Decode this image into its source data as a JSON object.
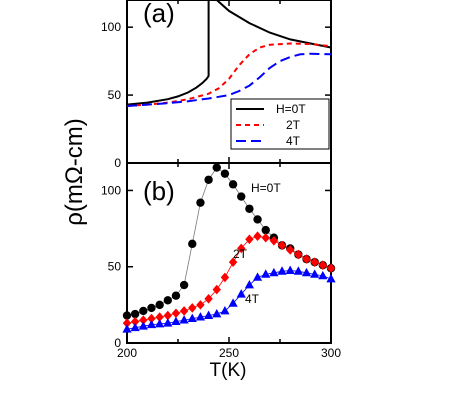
{
  "chart_data": [
    {
      "type": "line",
      "panel_label": "(a)",
      "xlim": [
        200,
        300
      ],
      "ylim": [
        0,
        120
      ],
      "yticks": [
        "0",
        "50",
        "100"
      ],
      "legend_placement": "lower-right",
      "series": [
        {
          "name": "H=0T",
          "color": "#000000",
          "dash": "solid",
          "points": [
            [
              200,
              43
            ],
            [
              210,
              44.5
            ],
            [
              220,
              47
            ],
            [
              225,
              49
            ],
            [
              230,
              52
            ],
            [
              234,
              55.5
            ],
            [
              237,
              59
            ],
            [
              239,
              62
            ],
            [
              240,
              64
            ],
            [
              240,
              120
            ]
          ],
          "points2": [
            [
              244,
              120
            ],
            [
              250,
              112
            ],
            [
              260,
              103
            ],
            [
              270,
              96
            ],
            [
              280,
              91
            ],
            [
              290,
              88
            ],
            [
              300,
              85
            ]
          ]
        },
        {
          "name": "2T",
          "color": "#ff0000",
          "dash": "5,4",
          "points": [
            [
              200,
              42
            ],
            [
              210,
              43
            ],
            [
              220,
              44.5
            ],
            [
              230,
              47
            ],
            [
              240,
              51
            ],
            [
              245,
              55
            ],
            [
              250,
              62
            ],
            [
              255,
              72
            ],
            [
              260,
              80
            ],
            [
              265,
              85
            ],
            [
              270,
              87
            ],
            [
              280,
              88
            ],
            [
              290,
              87.5
            ],
            [
              300,
              86
            ]
          ]
        },
        {
          "name": "4T",
          "color": "#0000ff",
          "dash": "10,5",
          "points": [
            [
              200,
              42
            ],
            [
              210,
              43
            ],
            [
              220,
              44
            ],
            [
              230,
              45.5
            ],
            [
              240,
              47.5
            ],
            [
              250,
              50
            ],
            [
              255,
              53
            ],
            [
              260,
              57
            ],
            [
              265,
              63
            ],
            [
              270,
              70
            ],
            [
              275,
              75
            ],
            [
              280,
              78
            ],
            [
              285,
              80
            ],
            [
              290,
              80.5
            ],
            [
              300,
              80
            ]
          ]
        }
      ]
    },
    {
      "type": "scatter",
      "panel_label": "(b)",
      "xlim": [
        200,
        300
      ],
      "ylim": [
        0,
        118
      ],
      "xticks": [
        "200",
        "250",
        "300"
      ],
      "yticks": [
        "0",
        "50",
        "100"
      ],
      "xlabel": "T(K)",
      "ylabel": "ρ(mΩ-cm)",
      "series": [
        {
          "name": "H=0T",
          "color": "#000000",
          "marker": "circle",
          "points": [
            [
              200,
              18
            ],
            [
              204,
              19
            ],
            [
              208,
              21
            ],
            [
              212,
              23
            ],
            [
              216,
              25
            ],
            [
              220,
              28
            ],
            [
              224,
              31
            ],
            [
              228,
              38
            ],
            [
              232,
              65
            ],
            [
              236,
              92
            ],
            [
              240,
              107
            ],
            [
              244,
              115
            ],
            [
              248,
              111
            ],
            [
              252,
              104
            ],
            [
              256,
              96
            ],
            [
              260,
              88
            ],
            [
              264,
              81
            ],
            [
              268,
              74
            ],
            [
              272,
              69
            ],
            [
              276,
              64
            ],
            [
              280,
              62
            ],
            [
              284,
              58
            ],
            [
              288,
              55
            ],
            [
              292,
              53
            ],
            [
              296,
              51
            ],
            [
              300,
              49
            ]
          ]
        },
        {
          "name": "2T",
          "color": "#ff0000",
          "marker": "diamond",
          "points": [
            [
              200,
              13
            ],
            [
              204,
              14
            ],
            [
              208,
              15
            ],
            [
              212,
              16
            ],
            [
              216,
              17
            ],
            [
              220,
              18
            ],
            [
              224,
              19.5
            ],
            [
              228,
              21
            ],
            [
              232,
              23
            ],
            [
              236,
              25
            ],
            [
              240,
              29
            ],
            [
              244,
              35
            ],
            [
              248,
              43
            ],
            [
              252,
              53
            ],
            [
              256,
              62
            ],
            [
              260,
              68
            ],
            [
              264,
              70
            ],
            [
              268,
              69
            ],
            [
              272,
              67
            ],
            [
              276,
              64
            ],
            [
              280,
              61
            ],
            [
              284,
              58
            ],
            [
              288,
              55
            ],
            [
              292,
              53
            ],
            [
              296,
              51
            ],
            [
              300,
              49
            ]
          ]
        },
        {
          "name": "4T",
          "color": "#0000ff",
          "marker": "triangle",
          "points": [
            [
              200,
              9
            ],
            [
              204,
              10
            ],
            [
              208,
              11
            ],
            [
              212,
              12
            ],
            [
              216,
              12.5
            ],
            [
              220,
              13
            ],
            [
              224,
              14
            ],
            [
              228,
              15
            ],
            [
              232,
              16
            ],
            [
              236,
              17
            ],
            [
              240,
              18
            ],
            [
              244,
              19
            ],
            [
              248,
              21
            ],
            [
              252,
              26
            ],
            [
              256,
              32
            ],
            [
              260,
              38
            ],
            [
              264,
              43
            ],
            [
              268,
              45
            ],
            [
              272,
              46
            ],
            [
              276,
              47
            ],
            [
              280,
              47.5
            ],
            [
              284,
              47
            ],
            [
              288,
              46
            ],
            [
              292,
              45
            ],
            [
              296,
              44
            ],
            [
              300,
              42
            ]
          ]
        }
      ]
    }
  ]
}
